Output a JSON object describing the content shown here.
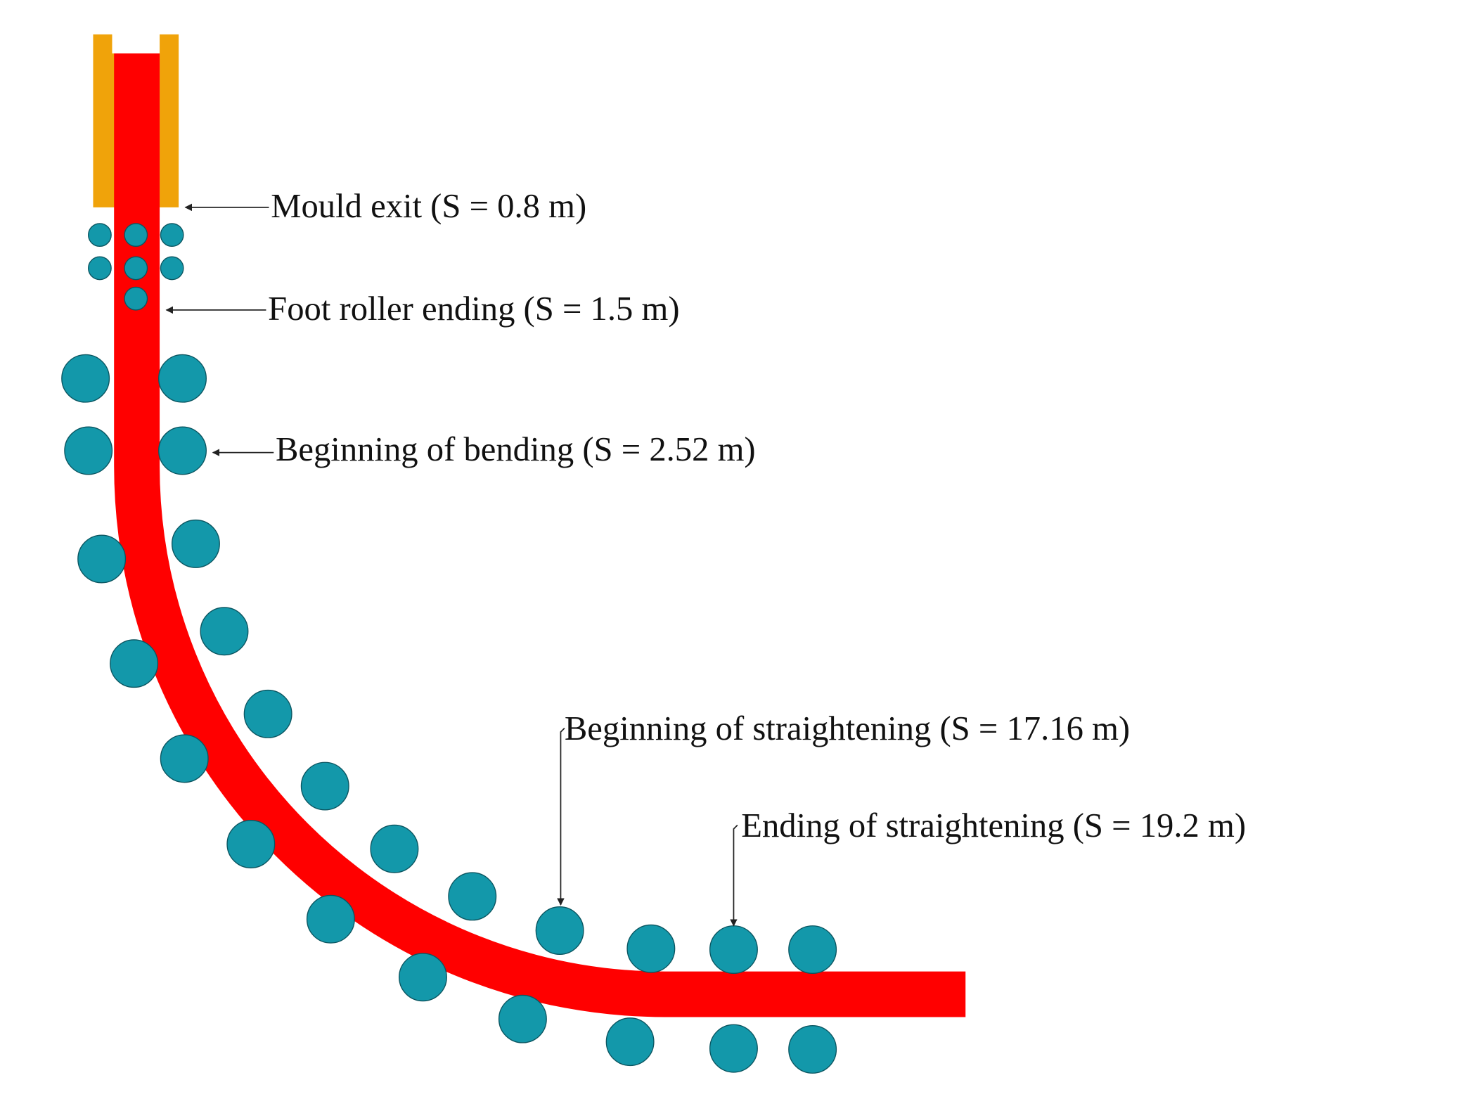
{
  "labels": [
    "Mould exit (S = 0.8 m)",
    "Foot roller ending (S = 1.5 m)",
    "Beginning of bending (S = 2.52 m)",
    "Beginning of straightening (S = 17.16 m)",
    "Ending of straightening (S = 19.2 m)"
  ]
}
